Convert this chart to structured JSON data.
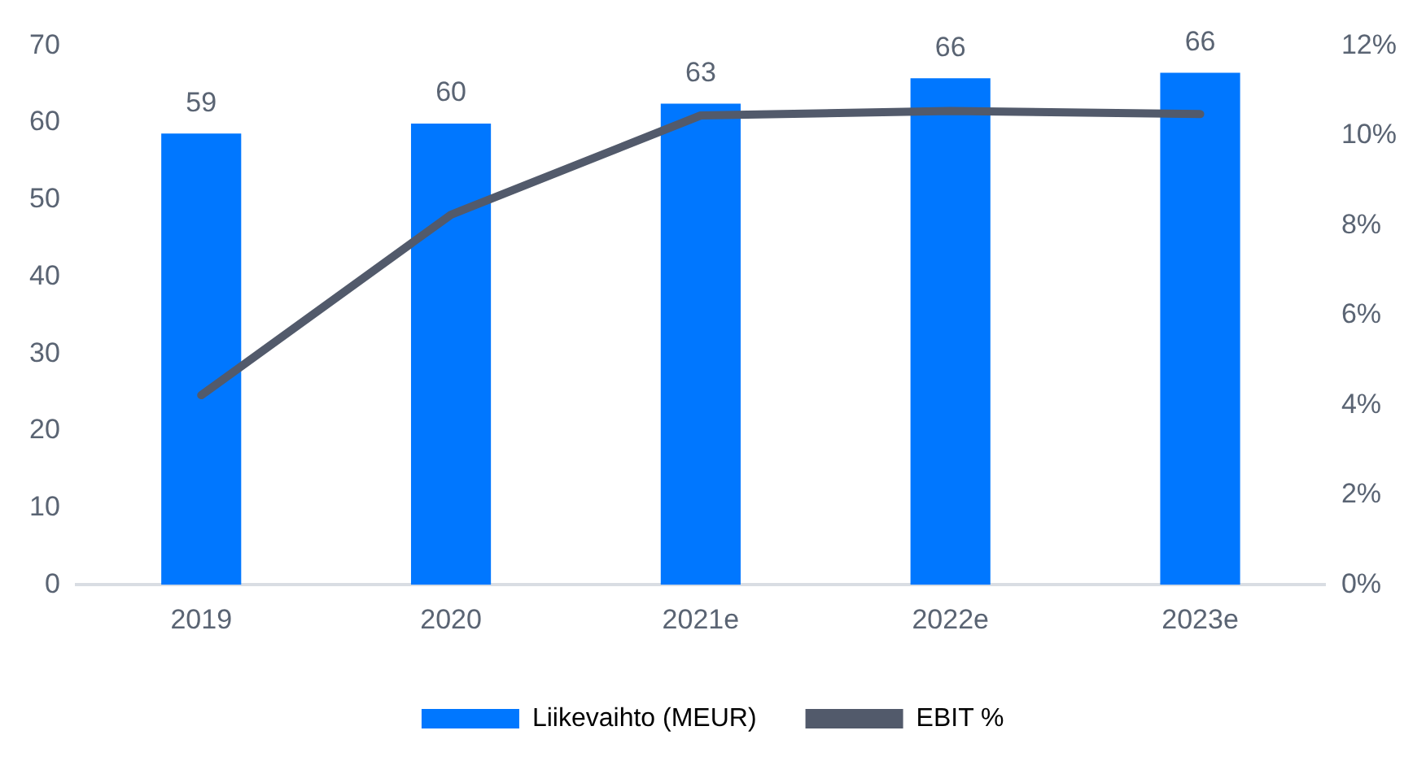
{
  "chart_data": {
    "type": "bar",
    "categories": [
      "2019",
      "2020",
      "2021e",
      "2022e",
      "2023e"
    ],
    "series": [
      {
        "name": "Liikevaihto (MEUR)",
        "color": "#0077ff",
        "values": [
          58.6,
          59.9,
          62.5,
          65.8,
          66.5
        ],
        "value_labels": [
          "59",
          "60",
          "63",
          "66",
          "66"
        ]
      },
      {
        "name": "EBIT %",
        "type": "line",
        "axis": "y2",
        "color": "#525a6b",
        "values": [
          4.22,
          8.24,
          10.45,
          10.55,
          10.48
        ]
      }
    ],
    "ylim": [
      0,
      70
    ],
    "yticks": [
      0,
      10,
      20,
      30,
      40,
      50,
      60,
      70
    ],
    "y2lim": [
      0,
      12
    ],
    "y2ticks": [
      {
        "value": 0,
        "label": "0%"
      },
      {
        "value": 2,
        "label": "2%"
      },
      {
        "value": 4,
        "label": "4%"
      },
      {
        "value": 6,
        "label": "6%"
      },
      {
        "value": 8,
        "label": "8%"
      },
      {
        "value": 10,
        "label": "10%"
      },
      {
        "value": 12,
        "label": "12%"
      }
    ],
    "legend": "bottom",
    "grid": false,
    "marker": "none",
    "line_style": "solid"
  }
}
